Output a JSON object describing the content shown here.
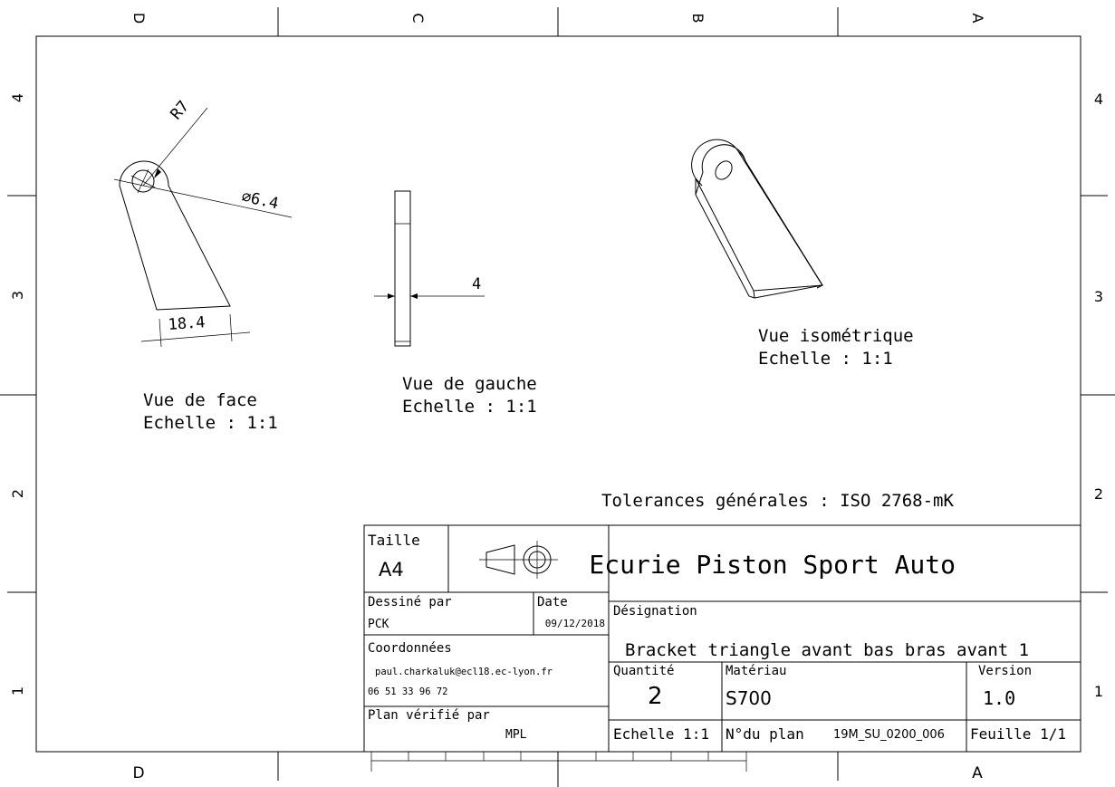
{
  "border": {
    "columns_top": [
      "D",
      "C",
      "B",
      "A"
    ],
    "columns_bottom": [
      "D",
      "A"
    ],
    "rows": [
      "4",
      "3",
      "2",
      "1"
    ]
  },
  "views": {
    "front": {
      "title": "Vue de face",
      "scale": "Echelle :  1:1",
      "dims": {
        "radius": "R7",
        "hole": "∅6.4",
        "width": "18.4"
      }
    },
    "left": {
      "title": "Vue de gauche",
      "scale": "Echelle :  1:1",
      "dims": {
        "thickness": "4"
      }
    },
    "iso": {
      "title": "Vue isométrique",
      "scale": "Echelle :  1:1"
    }
  },
  "tolerances": "Tolerances générales : ISO 2768-mK",
  "title_block": {
    "size_label": "Taille",
    "size_value": "A4",
    "company": "Ecurie Piston Sport Auto",
    "drawn_by_label": "Dessiné par",
    "drawn_by_value": "PCK",
    "date_label": "Date",
    "date_value": "09/12/2018",
    "designation_label": "Désignation",
    "designation_value": "Bracket triangle avant bas bras avant 1",
    "contact_label": "Coordonnées",
    "email": "paul.charkaluk@ecl18.ec-lyon.fr",
    "phone": "06 51 33 96 72",
    "quantity_label": "Quantité",
    "quantity_value": "2",
    "material_label": "Matériau",
    "material_value": "S700",
    "version_label": "Version",
    "version_value": "1.0",
    "checked_label": "Plan vérifié par",
    "checked_value": "MPL",
    "scale_value": "Echelle 1:1",
    "plan_label": "N°du plan",
    "plan_value": "19M_SU_0200_006",
    "sheet_value": "Feuille 1/1"
  }
}
